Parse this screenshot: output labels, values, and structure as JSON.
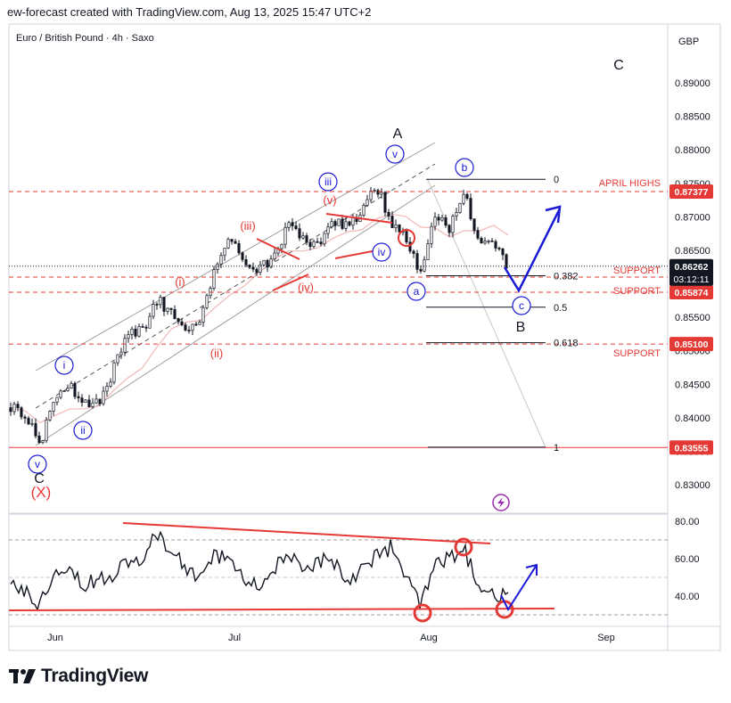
{
  "header": {
    "attribution": "ew-forecast created with TradingView.com, Aug 13, 2025 15:47 UTC+2"
  },
  "chart": {
    "symbol_title": "Euro / British Pound · 4h · Saxo",
    "currency": "GBP",
    "countdown": "03:12:11",
    "x_tick_labels": [
      "Jun",
      "Jul",
      "Aug",
      "Sep"
    ],
    "osc_tick_labels": [
      "80.00",
      "60.00",
      "40.00"
    ]
  },
  "chart_data": {
    "type": "line",
    "title": "Euro / British Pound · 4h · Saxo",
    "xlabel": "",
    "ylabel": "GBP",
    "ylim": [
      0.8255,
      0.8945
    ],
    "y_ticks": [
      0.89,
      0.885,
      0.88,
      0.875,
      0.87,
      0.865,
      0.86,
      0.855,
      0.85,
      0.845,
      0.84,
      0.835,
      0.83
    ],
    "x_tick_labels": [
      "Jun",
      "Jul",
      "Aug",
      "Sep"
    ],
    "series": [
      {
        "x": [
          "May 28",
          "May 29",
          "May 30",
          "Jun 2",
          "Jun 4",
          "Jun 6",
          "Jun 9",
          "Jun 11",
          "Jun 13",
          "Jun 16",
          "Jun 18",
          "Jun 20",
          "Jun 23",
          "Jun 25",
          "Jun 27",
          "Jun 30",
          "Jul 2",
          "Jul 4",
          "Jul 7",
          "Jul 9",
          "Jul 11",
          "Jul 14",
          "Jul 16",
          "Jul 18",
          "Jul 21",
          "Jul 23",
          "Jul 25",
          "Jul 28",
          "Jul 30",
          "Aug 1",
          "Aug 4",
          "Aug 6",
          "Aug 8",
          "Aug 11",
          "Aug 13"
        ],
        "values": [
          0.8415,
          0.8405,
          0.8357,
          0.8435,
          0.8452,
          0.8418,
          0.8425,
          0.847,
          0.8532,
          0.8527,
          0.8575,
          0.856,
          0.852,
          0.8545,
          0.8627,
          0.8665,
          0.863,
          0.862,
          0.864,
          0.869,
          0.8665,
          0.8655,
          0.8688,
          0.869,
          0.8705,
          0.8748,
          0.869,
          0.867,
          0.861,
          0.87,
          0.868,
          0.8737,
          0.8665,
          0.8655,
          0.8626
        ]
      }
    ],
    "oscillator": {
      "ylim": [
        25,
        85
      ],
      "ticks": [
        80,
        60,
        40
      ],
      "values": [
        48,
        42,
        35,
        55,
        57,
        45,
        50,
        52,
        60,
        55,
        75,
        63,
        55,
        50,
        62,
        60,
        48,
        45,
        55,
        62,
        52,
        58,
        60,
        48,
        55,
        62,
        66,
        50,
        35,
        55,
        60,
        65,
        44,
        40,
        40
      ]
    },
    "price_levels": [
      {
        "label": "APRIL HIGHS",
        "value": 0.87377,
        "tag": "0.87377"
      },
      {
        "label": "SUPPORT",
        "value": 0.861,
        "tag": "0.86100"
      },
      {
        "label": "SUPPORT",
        "value": 0.85874,
        "tag": "0.85874"
      },
      {
        "label": "SUPPORT",
        "value": 0.851,
        "tag": "0.85100"
      },
      {
        "label": "",
        "value": 0.83555,
        "tag": "0.83555"
      }
    ],
    "current_price": {
      "value": 0.86262,
      "tag": "0.86262",
      "countdown": "03:12:11"
    },
    "fibonacci": [
      {
        "ratio": "0",
        "value": 0.8756
      },
      {
        "ratio": "0.382",
        "value": 0.8612
      },
      {
        "ratio": "0.5",
        "value": 0.8565
      },
      {
        "ratio": "0.618",
        "value": 0.8512
      },
      {
        "ratio": "1",
        "value": 0.8356
      }
    ],
    "wave_labels": {
      "black": [
        "A",
        "B",
        "C",
        "C"
      ],
      "red": [
        "(i)",
        "(ii)",
        "(iii)",
        "(iv)",
        "(v)",
        "(X)"
      ],
      "blue": [
        "i",
        "ii",
        "iii",
        "iv",
        "v",
        "v",
        "a",
        "b",
        "c"
      ]
    },
    "colors": {
      "level_line": "#e53935",
      "price_tag": "#e53935",
      "current_tag": "#131722",
      "projection": "#1a1ad6",
      "candles": "#131722",
      "moving_average": "#f2b8b8"
    }
  },
  "footer": {
    "brand": "TradingView"
  }
}
